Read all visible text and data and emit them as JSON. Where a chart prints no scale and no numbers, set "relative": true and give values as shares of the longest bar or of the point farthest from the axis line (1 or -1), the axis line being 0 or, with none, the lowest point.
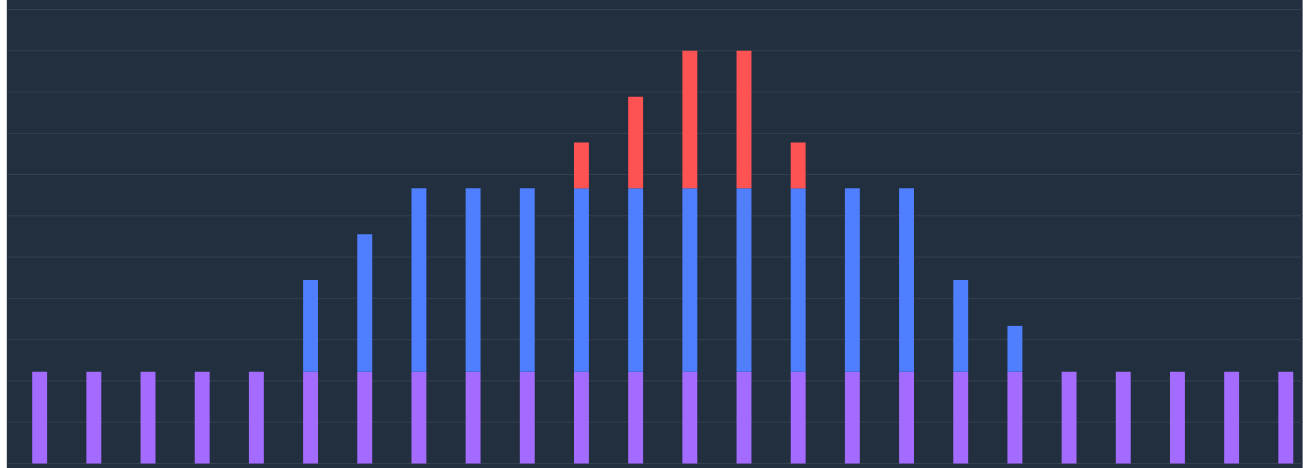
{
  "chart_data": {
    "type": "bar",
    "stacked": true,
    "relative": true,
    "grid": "y",
    "categories": [
      null,
      null,
      null,
      null,
      null,
      null,
      null,
      null,
      null,
      null,
      null,
      null,
      null,
      null,
      null,
      null,
      null,
      null,
      null,
      null,
      null,
      null,
      null,
      null
    ],
    "series": [
      {
        "color": "#a36bff",
        "values": [
          0.2222,
          0.2222,
          0.2222,
          0.2222,
          0.2222,
          0.2222,
          0.2222,
          0.2222,
          0.2222,
          0.2222,
          0.2222,
          0.2222,
          0.2222,
          0.2222,
          0.2222,
          0.2222,
          0.2222,
          0.2222,
          0.2222,
          0.2222,
          0.2222,
          0.2222,
          0.2222,
          0.2222
        ]
      },
      {
        "color": "#4f7fff",
        "values": [
          0,
          0,
          0,
          0,
          0,
          0.2222,
          0.3333,
          0.4444,
          0.4444,
          0.4444,
          0.4444,
          0.4444,
          0.4444,
          0.4444,
          0.4444,
          0.4444,
          0.4444,
          0.2222,
          0.1111,
          0,
          0,
          0,
          0,
          0
        ]
      },
      {
        "color": "#ff5252",
        "values": [
          0,
          0,
          0,
          0,
          0,
          0,
          0,
          0,
          0,
          0,
          0.1111,
          0.2222,
          0.3334,
          0.3334,
          0.1111,
          0,
          0,
          0,
          0,
          0,
          0,
          0,
          0,
          0
        ]
      }
    ]
  }
}
